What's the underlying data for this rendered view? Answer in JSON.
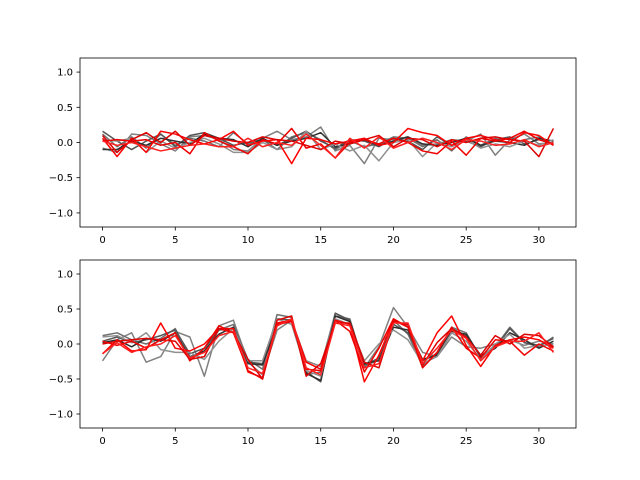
{
  "chart_data": [
    {
      "type": "line",
      "title": "",
      "xlabel": "",
      "ylabel": "",
      "xlim": [
        -1.55,
        32.55
      ],
      "ylim": [
        -1.2,
        1.2
      ],
      "xticks": [
        0,
        5,
        10,
        15,
        20,
        25,
        30
      ],
      "yticks": [
        -1.0,
        -0.5,
        0.0,
        0.5,
        1.0
      ],
      "xtick_labels": [
        "0",
        "5",
        "10",
        "15",
        "20",
        "25",
        "30"
      ],
      "ytick_labels": [
        "−1.0",
        "−0.5",
        "0.0",
        "0.5",
        "1.0"
      ],
      "grid": false,
      "series": [
        {
          "color": "#808080",
          "values": [
            -0.08,
            -0.14,
            0.12,
            0.1,
            -0.02,
            -0.12,
            0.08,
            0.1,
            0.04,
            -0.1,
            -0.12,
            0.06,
            0.16,
            0.04,
            0.08,
            0.22,
            -0.12,
            -0.04,
            -0.3,
            0.06,
            0.04,
            0.08,
            -0.04,
            -0.02,
            0.04,
            0.02,
            0.12,
            -0.18,
            0.04,
            0.12,
            -0.02,
            0.0
          ]
        },
        {
          "color": "#707070",
          "values": [
            0.12,
            -0.06,
            0.08,
            -0.08,
            0.12,
            -0.04,
            0.06,
            0.02,
            -0.06,
            0.14,
            -0.02,
            0.04,
            -0.1,
            0.08,
            0.14,
            0.04,
            -0.1,
            0.02,
            -0.06,
            -0.02,
            0.08,
            0.06,
            -0.06,
            0.04,
            -0.12,
            0.08,
            -0.04,
            0.06,
            -0.02,
            0.04,
            0.08,
            -0.04
          ]
        },
        {
          "color": "#555555",
          "values": [
            0.16,
            0.02,
            -0.1,
            0.02,
            0.12,
            -0.06,
            0.1,
            0.14,
            0.06,
            -0.04,
            0.0,
            0.04,
            -0.04,
            0.06,
            0.16,
            0.02,
            -0.08,
            0.04,
            0.02,
            -0.06,
            0.06,
            0.02,
            -0.1,
            0.08,
            -0.04,
            0.02,
            -0.06,
            0.04,
            0.08,
            -0.02,
            0.04,
            -0.02
          ]
        },
        {
          "color": "#303030",
          "values": [
            -0.1,
            -0.1,
            0.02,
            -0.04,
            0.06,
            0.02,
            -0.02,
            0.12,
            0.06,
            0.04,
            -0.06,
            0.06,
            -0.04,
            0.02,
            0.06,
            0.14,
            -0.06,
            -0.02,
            0.04,
            -0.04,
            0.02,
            0.08,
            -0.02,
            -0.04,
            0.0,
            0.06,
            -0.04,
            0.02,
            0.0,
            -0.04,
            0.06,
            0.02
          ]
        },
        {
          "color": "#909090",
          "values": [
            0.04,
            0.02,
            0.06,
            -0.14,
            0.02,
            -0.08,
            0.0,
            0.06,
            -0.02,
            -0.14,
            -0.14,
            0.0,
            -0.1,
            -0.06,
            0.16,
            -0.1,
            -0.02,
            -0.12,
            -0.04,
            -0.26,
            0.0,
            0.04,
            -0.2,
            0.0,
            -0.06,
            0.04,
            -0.08,
            -0.02,
            -0.06,
            0.02,
            -0.04,
            0.04
          ]
        },
        {
          "color": "#ff0000",
          "values": [
            0.06,
            -0.2,
            0.06,
            -0.14,
            0.16,
            0.12,
            0.04,
            -0.02,
            0.04,
            0.16,
            -0.04,
            0.02,
            0.04,
            -0.3,
            0.06,
            0.04,
            -0.02,
            0.02,
            0.06,
            -0.04,
            0.0,
            0.2,
            0.14,
            0.1,
            -0.04,
            0.06,
            0.1,
            0.04,
            0.0,
            0.14,
            0.1,
            -0.04
          ]
        },
        {
          "color": "#ee0000",
          "values": [
            0.02,
            0.04,
            0.02,
            0.04,
            -0.04,
            0.0,
            -0.16,
            0.14,
            0.02,
            -0.06,
            -0.16,
            0.04,
            -0.02,
            0.2,
            -0.08,
            -0.02,
            -0.22,
            0.0,
            0.04,
            -0.02,
            0.06,
            0.0,
            -0.12,
            -0.16,
            0.02,
            -0.18,
            0.06,
            0.02,
            0.06,
            0.16,
            0.04,
            -0.02
          ]
        },
        {
          "color": "#dd0000",
          "values": [
            0.1,
            -0.14,
            0.04,
            0.14,
            0.0,
            0.16,
            -0.04,
            0.1,
            0.06,
            0.02,
            0.0,
            0.08,
            0.04,
            0.02,
            -0.04,
            -0.1,
            0.02,
            -0.02,
            0.04,
            0.1,
            -0.06,
            0.06,
            0.04,
            -0.06,
            0.04,
            0.0,
            0.06,
            0.08,
            0.04,
            0.02,
            -0.2,
            0.2
          ]
        },
        {
          "color": "#ff2020",
          "values": [
            0.02,
            -0.04,
            0.0,
            -0.06,
            -0.12,
            -0.08,
            -0.04,
            -0.02,
            -0.06,
            -0.06,
            0.06,
            -0.06,
            0.0,
            -0.04,
            0.12,
            -0.04,
            -0.22,
            0.06,
            -0.08,
            0.08,
            -0.08,
            0.0,
            0.06,
            0.0,
            -0.1,
            0.04,
            0.02,
            -0.04,
            -0.02,
            0.04,
            -0.06,
            0.0
          ]
        }
      ]
    },
    {
      "type": "line",
      "title": "",
      "xlabel": "",
      "ylabel": "",
      "xlim": [
        -1.55,
        32.55
      ],
      "ylim": [
        -1.2,
        1.2
      ],
      "xticks": [
        0,
        5,
        10,
        15,
        20,
        25,
        30
      ],
      "yticks": [
        -1.0,
        -0.5,
        0.0,
        0.5,
        1.0
      ],
      "xtick_labels": [
        "0",
        "5",
        "10",
        "15",
        "20",
        "25",
        "30"
      ],
      "ytick_labels": [
        "−1.0",
        "−0.5",
        "0.0",
        "0.5",
        "1.0"
      ],
      "grid": false,
      "series": [
        {
          "color": "#808080",
          "values": [
            -0.24,
            0.06,
            0.16,
            -0.26,
            -0.18,
            0.18,
            0.1,
            -0.46,
            0.26,
            0.34,
            -0.26,
            -0.44,
            0.2,
            0.34,
            -0.24,
            -0.32,
            0.44,
            0.32,
            -0.34,
            -0.04,
            0.52,
            0.24,
            -0.12,
            -0.18,
            0.1,
            -0.04,
            -0.06,
            0.0,
            0.06,
            -0.02,
            0.04,
            0.0
          ]
        },
        {
          "color": "#707070",
          "values": [
            0.12,
            0.16,
            0.06,
            0.0,
            0.08,
            0.22,
            -0.18,
            -0.1,
            0.2,
            0.28,
            -0.22,
            -0.36,
            0.42,
            0.38,
            -0.44,
            -0.4,
            0.4,
            0.36,
            -0.32,
            -0.22,
            0.34,
            0.14,
            -0.32,
            -0.12,
            0.24,
            0.16,
            -0.2,
            -0.04,
            0.24,
            0.02,
            -0.04,
            0.1
          ]
        },
        {
          "color": "#555555",
          "values": [
            0.04,
            0.1,
            0.02,
            0.06,
            0.12,
            0.2,
            -0.14,
            -0.06,
            0.2,
            0.22,
            -0.26,
            -0.28,
            0.36,
            0.34,
            -0.4,
            -0.54,
            0.44,
            0.34,
            -0.3,
            -0.2,
            0.28,
            0.16,
            -0.24,
            -0.14,
            0.22,
            0.12,
            -0.16,
            -0.06,
            0.22,
            0.02,
            -0.02,
            0.08
          ]
        },
        {
          "color": "#303030",
          "values": [
            0.02,
            0.06,
            -0.04,
            0.08,
            0.04,
            0.16,
            -0.2,
            -0.1,
            0.14,
            0.24,
            -0.28,
            -0.3,
            0.26,
            0.36,
            -0.42,
            -0.52,
            0.4,
            0.32,
            -0.28,
            -0.24,
            0.24,
            0.2,
            -0.22,
            -0.16,
            0.18,
            0.14,
            -0.18,
            -0.06,
            0.16,
            0.06,
            -0.06,
            0.04
          ]
        },
        {
          "color": "#909090",
          "values": [
            0.1,
            0.12,
            0.02,
            0.16,
            -0.08,
            -0.12,
            -0.12,
            -0.22,
            0.04,
            0.22,
            -0.24,
            -0.24,
            0.36,
            0.28,
            -0.38,
            -0.46,
            0.36,
            0.28,
            -0.24,
            0.0,
            0.2,
            0.06,
            -0.28,
            -0.18,
            0.16,
            0.04,
            -0.22,
            0.0,
            0.14,
            -0.06,
            -0.02,
            -0.02
          ]
        },
        {
          "color": "#ff0000",
          "values": [
            -0.14,
            0.06,
            -0.1,
            -0.08,
            0.3,
            -0.06,
            -0.1,
            0.0,
            0.22,
            0.22,
            -0.4,
            -0.48,
            0.3,
            0.34,
            -0.26,
            -0.36,
            0.34,
            0.28,
            -0.54,
            -0.16,
            0.34,
            0.24,
            -0.24,
            0.16,
            0.4,
            -0.02,
            -0.32,
            -0.02,
            0.06,
            0.1,
            0.06,
            -0.06
          ]
        },
        {
          "color": "#ee0000",
          "values": [
            0.04,
            -0.02,
            0.04,
            -0.06,
            0.06,
            0.16,
            -0.24,
            -0.06,
            0.26,
            0.16,
            -0.38,
            -0.5,
            0.28,
            0.32,
            -0.36,
            -0.38,
            0.34,
            0.18,
            -0.4,
            -0.06,
            0.36,
            0.24,
            -0.34,
            -0.12,
            0.24,
            -0.06,
            -0.2,
            0.06,
            0.04,
            -0.16,
            0.0,
            -0.1
          ]
        },
        {
          "color": "#dd0000",
          "values": [
            0.0,
            0.04,
            0.06,
            0.08,
            0.06,
            0.04,
            -0.22,
            -0.18,
            0.22,
            0.16,
            -0.22,
            -0.5,
            0.34,
            0.4,
            -0.46,
            -0.28,
            0.3,
            0.3,
            -0.26,
            -0.34,
            0.32,
            0.28,
            -0.3,
            0.02,
            0.22,
            0.1,
            -0.16,
            0.12,
            0.0,
            0.14,
            0.12,
            -0.04
          ]
        },
        {
          "color": "#ff2020",
          "values": [
            -0.14,
            0.02,
            -0.12,
            -0.04,
            0.0,
            0.12,
            -0.2,
            -0.12,
            0.12,
            0.18,
            -0.34,
            -0.42,
            0.26,
            0.36,
            -0.34,
            -0.44,
            0.3,
            0.26,
            -0.34,
            -0.28,
            0.3,
            0.3,
            -0.28,
            -0.06,
            0.2,
            0.08,
            -0.24,
            -0.04,
            0.04,
            0.04,
            0.16,
            -0.12
          ]
        }
      ]
    }
  ]
}
